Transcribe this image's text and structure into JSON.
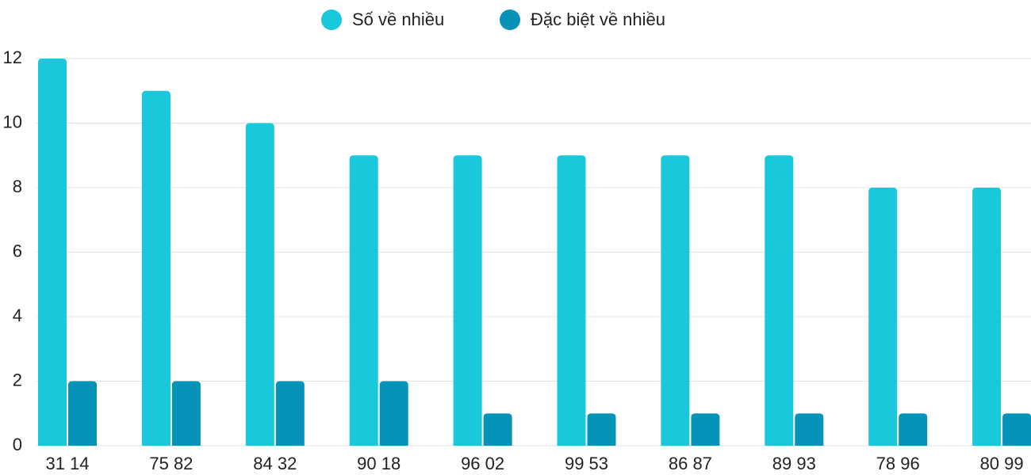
{
  "chart_data": {
    "type": "bar",
    "categories": [
      "31 14",
      "75 82",
      "84 32",
      "90 18",
      "96 02",
      "99 53",
      "86 87",
      "89 93",
      "78 96",
      "80 99"
    ],
    "series": [
      {
        "name": "Số về nhiều",
        "color": "#1ac8db",
        "values": [
          12,
          11,
          10,
          9,
          9,
          9,
          9,
          9,
          8,
          8
        ]
      },
      {
        "name": "Đặc biệt về nhiều",
        "color": "#0593b8",
        "values": [
          2,
          2,
          2,
          2,
          1,
          1,
          1,
          1,
          1,
          1
        ]
      }
    ],
    "ylim": [
      0,
      12
    ],
    "yticks": [
      0,
      2,
      4,
      6,
      8,
      10,
      12
    ],
    "grid": true
  }
}
